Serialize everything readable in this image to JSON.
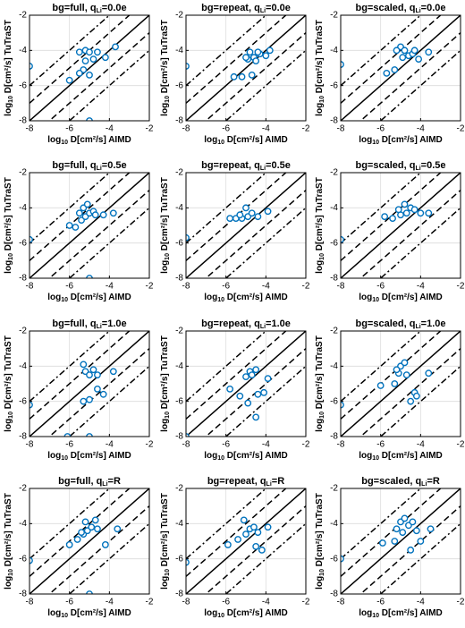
{
  "chart_data": [
    {
      "type": "scatter",
      "title": {
        "text": "bg=full,  q",
        "sub": "Li",
        "end": "=0.0e"
      },
      "xlabel": {
        "text": "log",
        "sub": "10",
        "end": "  D[cm²/s]  AIMD"
      },
      "ylabel": {
        "text": "log",
        "sub": "10",
        "end": "  D[cm²/s]  TuTraST"
      },
      "xlim": [
        -8,
        -2
      ],
      "ylim": [
        -8,
        -2
      ],
      "xticks": [
        -8,
        -6,
        -4,
        -2
      ],
      "yticks": [
        -8,
        -6,
        -4,
        -2
      ],
      "grid": true,
      "color": "#0072bd",
      "reference_lines": [
        {
          "offset": 0,
          "dash": "solid"
        },
        {
          "offset": 1,
          "dash": "dashed"
        },
        {
          "offset": -1,
          "dash": "dashed"
        },
        {
          "offset": 2,
          "dash": "dashdot"
        },
        {
          "offset": -2,
          "dash": "dashdot"
        }
      ],
      "x": [
        -8,
        -5,
        -5.5,
        -5.2,
        -5.0,
        -4.6,
        -3.7,
        -4.2,
        -5.2,
        -5.3,
        -5.5,
        -5.0,
        -6.0,
        -4.8
      ],
      "y": [
        -4.9,
        -8,
        -4.1,
        -4.0,
        -4.1,
        -4.1,
        -3.8,
        -4.4,
        -4.6,
        -5.1,
        -5.3,
        -5.4,
        -5.7,
        -4.5
      ]
    },
    {
      "type": "scatter",
      "title": {
        "text": "bg=repeat,  q",
        "sub": "Li",
        "end": "=0.0e"
      },
      "xlabel": {
        "text": "log",
        "sub": "10",
        "end": "  D[cm²/s]  AIMD"
      },
      "ylabel": {
        "text": "log",
        "sub": "10",
        "end": "  D[cm²/s]  TuTraST"
      },
      "xlim": [
        -8,
        -2
      ],
      "ylim": [
        -8,
        -2
      ],
      "xticks": [
        -8,
        -6,
        -4,
        -2
      ],
      "yticks": [
        -8,
        -6,
        -4,
        -2
      ],
      "grid": true,
      "color": "#0072bd",
      "reference_lines": [
        {
          "offset": 0,
          "dash": "solid"
        },
        {
          "offset": 1,
          "dash": "dashed"
        },
        {
          "offset": -1,
          "dash": "dashed"
        },
        {
          "offset": 2,
          "dash": "dashdot"
        },
        {
          "offset": -2,
          "dash": "dashdot"
        }
      ],
      "x": [
        -8,
        -5.6,
        -5.2,
        -4.8,
        -4.9,
        -4.6,
        -4.3,
        -4.0,
        -3.8,
        -4.7,
        -5.0,
        -4.5,
        -4.4
      ],
      "y": [
        -4.9,
        -5.5,
        -5.5,
        -4.1,
        -4.5,
        -4.4,
        -4.2,
        -4.3,
        -4.0,
        -5.4,
        -4.4,
        -4.6,
        -4.1
      ]
    },
    {
      "type": "scatter",
      "title": {
        "text": "bg=scaled,  q",
        "sub": "Li",
        "end": "=0.0e"
      },
      "xlabel": {
        "text": "log",
        "sub": "10",
        "end": "  D[cm²/s]  AIMD"
      },
      "ylabel": {
        "text": "log",
        "sub": "10",
        "end": "  D[cm²/s]  TuTraST"
      },
      "xlim": [
        -8,
        -2
      ],
      "ylim": [
        -8,
        -2
      ],
      "xticks": [
        -8,
        -6,
        -4,
        -2
      ],
      "yticks": [
        -8,
        -6,
        -4,
        -2
      ],
      "grid": true,
      "color": "#0072bd",
      "reference_lines": [
        {
          "offset": 0,
          "dash": "solid"
        },
        {
          "offset": 1,
          "dash": "dashed"
        },
        {
          "offset": -1,
          "dash": "dashed"
        },
        {
          "offset": 2,
          "dash": "dashdot"
        },
        {
          "offset": -2,
          "dash": "dashdot"
        }
      ],
      "x": [
        -8,
        -5.7,
        -5.3,
        -5.0,
        -4.8,
        -4.6,
        -4.4,
        -4.9,
        -5.2,
        -4.1,
        -4.3,
        -3.6
      ],
      "y": [
        -4.8,
        -5.3,
        -5.1,
        -3.8,
        -4.0,
        -4.3,
        -4.2,
        -4.4,
        -4.0,
        -4.5,
        -4.0,
        -4.1
      ]
    },
    {
      "type": "scatter",
      "title": {
        "text": "bg=full,  q",
        "sub": "Li",
        "end": "=0.5e"
      },
      "xlabel": {
        "text": "log",
        "sub": "10",
        "end": "  D[cm²/s]  AIMD"
      },
      "ylabel": {
        "text": "log",
        "sub": "10",
        "end": "  D[cm²/s]  TuTraST"
      },
      "xlim": [
        -8,
        -2
      ],
      "ylim": [
        -8,
        -2
      ],
      "xticks": [
        -8,
        -6,
        -4,
        -2
      ],
      "yticks": [
        -8,
        -6,
        -4,
        -2
      ],
      "grid": true,
      "color": "#0072bd",
      "reference_lines": [
        {
          "offset": 0,
          "dash": "solid"
        },
        {
          "offset": 1,
          "dash": "dashed"
        },
        {
          "offset": -1,
          "dash": "dashed"
        },
        {
          "offset": 2,
          "dash": "dashdot"
        },
        {
          "offset": -2,
          "dash": "dashdot"
        }
      ],
      "x": [
        -8,
        -5,
        -6,
        -5.7,
        -5.4,
        -5.2,
        -5.0,
        -4.8,
        -5.3,
        -5.1,
        -4.7,
        -4.3,
        -3.8,
        -5.5
      ],
      "y": [
        -5.8,
        -8,
        -5.0,
        -5.1,
        -4.7,
        -4.5,
        -4.3,
        -4.2,
        -4.0,
        -3.8,
        -4.4,
        -4.4,
        -4.3,
        -4.3
      ]
    },
    {
      "type": "scatter",
      "title": {
        "text": "bg=repeat,  q",
        "sub": "Li",
        "end": "=0.5e"
      },
      "xlabel": {
        "text": "log",
        "sub": "10",
        "end": "  D[cm²/s]  AIMD"
      },
      "ylabel": {
        "text": "log",
        "sub": "10",
        "end": "  D[cm²/s]  TuTraST"
      },
      "xlim": [
        -8,
        -2
      ],
      "ylim": [
        -8,
        -2
      ],
      "xticks": [
        -8,
        -6,
        -4,
        -2
      ],
      "yticks": [
        -8,
        -6,
        -4,
        -2
      ],
      "grid": true,
      "color": "#0072bd",
      "reference_lines": [
        {
          "offset": 0,
          "dash": "solid"
        },
        {
          "offset": 1,
          "dash": "dashed"
        },
        {
          "offset": -1,
          "dash": "dashed"
        },
        {
          "offset": 2,
          "dash": "dashdot"
        },
        {
          "offset": -2,
          "dash": "dashdot"
        }
      ],
      "x": [
        -8,
        -5.8,
        -5.5,
        -5.2,
        -4.9,
        -4.7,
        -5.0,
        -4.4,
        -3.9,
        -5.3
      ],
      "y": [
        -5.7,
        -4.6,
        -4.6,
        -4.6,
        -4.5,
        -4.3,
        -4.0,
        -4.5,
        -4.2,
        -4.4
      ]
    },
    {
      "type": "scatter",
      "title": {
        "text": "bg=scaled,  q",
        "sub": "Li",
        "end": "=0.5e"
      },
      "xlabel": {
        "text": "log",
        "sub": "10",
        "end": "  D[cm²/s]  AIMD"
      },
      "ylabel": {
        "text": "log",
        "sub": "10",
        "end": "  D[cm²/s]  TuTraST"
      },
      "xlim": [
        -8,
        -2
      ],
      "ylim": [
        -8,
        -2
      ],
      "xticks": [
        -8,
        -6,
        -4,
        -2
      ],
      "yticks": [
        -8,
        -6,
        -4,
        -2
      ],
      "grid": true,
      "color": "#0072bd",
      "reference_lines": [
        {
          "offset": 0,
          "dash": "solid"
        },
        {
          "offset": 1,
          "dash": "dashed"
        },
        {
          "offset": -1,
          "dash": "dashed"
        },
        {
          "offset": 2,
          "dash": "dashdot"
        },
        {
          "offset": -2,
          "dash": "dashdot"
        }
      ],
      "x": [
        -8,
        -5.8,
        -5.4,
        -5.0,
        -4.7,
        -4.5,
        -4.8,
        -4.3,
        -4.0,
        -3.6,
        -5.1
      ],
      "y": [
        -5.8,
        -4.5,
        -4.6,
        -4.4,
        -4.3,
        -4.0,
        -3.8,
        -4.1,
        -4.3,
        -4.3,
        -4.1
      ]
    },
    {
      "type": "scatter",
      "title": {
        "text": "bg=full,  q",
        "sub": "Li",
        "end": "=1.0e"
      },
      "xlabel": {
        "text": "log",
        "sub": "10",
        "end": "  D[cm²/s]  AIMD"
      },
      "ylabel": {
        "text": "log",
        "sub": "10",
        "end": "  D[cm²/s]  TuTraST"
      },
      "xlim": [
        -8,
        -2
      ],
      "ylim": [
        -8,
        -2
      ],
      "xticks": [
        -8,
        -6,
        -4,
        -2
      ],
      "yticks": [
        -8,
        -6,
        -4,
        -2
      ],
      "grid": true,
      "color": "#0072bd",
      "reference_lines": [
        {
          "offset": 0,
          "dash": "solid"
        },
        {
          "offset": 1,
          "dash": "dashed"
        },
        {
          "offset": -1,
          "dash": "dashed"
        },
        {
          "offset": 2,
          "dash": "dashdot"
        },
        {
          "offset": -2,
          "dash": "dashdot"
        }
      ],
      "x": [
        -8,
        -6.1,
        -5,
        -5.2,
        -5.0,
        -4.8,
        -5.3,
        -4.6,
        -3.8,
        -4.6,
        -4.3,
        -5.0,
        -5.3
      ],
      "y": [
        -6.2,
        -8,
        -8,
        -4.3,
        -4.5,
        -4.2,
        -3.9,
        -4.5,
        -4.3,
        -5.3,
        -5.6,
        -5.9,
        -6.0
      ]
    },
    {
      "type": "scatter",
      "title": {
        "text": "bg=repeat,  q",
        "sub": "Li",
        "end": "=1.0e"
      },
      "xlabel": {
        "text": "log",
        "sub": "10",
        "end": "  D[cm²/s]  AIMD"
      },
      "ylabel": {
        "text": "log",
        "sub": "10",
        "end": "  D[cm²/s]  TuTraST"
      },
      "xlim": [
        -8,
        -2
      ],
      "ylim": [
        -8,
        -2
      ],
      "xticks": [
        -8,
        -6,
        -4,
        -2
      ],
      "yticks": [
        -8,
        -6,
        -4,
        -2
      ],
      "grid": true,
      "color": "#0072bd",
      "reference_lines": [
        {
          "offset": 0,
          "dash": "solid"
        },
        {
          "offset": 1,
          "dash": "dashed"
        },
        {
          "offset": -1,
          "dash": "dashed"
        },
        {
          "offset": 2,
          "dash": "dashdot"
        },
        {
          "offset": -2,
          "dash": "dashdot"
        }
      ],
      "x": [
        -8,
        -5.8,
        -5.3,
        -5.0,
        -4.8,
        -4.5,
        -4.7,
        -4.4,
        -4.1,
        -3.9,
        -4.9,
        -4.5
      ],
      "y": [
        -8,
        -5.3,
        -5.7,
        -4.6,
        -4.3,
        -4.2,
        -4.5,
        -5.6,
        -5.5,
        -4.7,
        -6.1,
        -6.9
      ]
    },
    {
      "type": "scatter",
      "title": {
        "text": "bg=scaled,  q",
        "sub": "Li",
        "end": "=1.0e"
      },
      "xlabel": {
        "text": "log",
        "sub": "10",
        "end": "  D[cm²/s]  AIMD"
      },
      "ylabel": {
        "text": "log",
        "sub": "10",
        "end": "  D[cm²/s]  TuTraST"
      },
      "xlim": [
        -8,
        -2
      ],
      "ylim": [
        -8,
        -2
      ],
      "xticks": [
        -8,
        -6,
        -4,
        -2
      ],
      "yticks": [
        -8,
        -6,
        -4,
        -2
      ],
      "grid": true,
      "color": "#0072bd",
      "reference_lines": [
        {
          "offset": 0,
          "dash": "solid"
        },
        {
          "offset": 1,
          "dash": "dashed"
        },
        {
          "offset": -1,
          "dash": "dashed"
        },
        {
          "offset": 2,
          "dash": "dashdot"
        },
        {
          "offset": -2,
          "dash": "dashdot"
        }
      ],
      "x": [
        -8,
        -6.0,
        -5.3,
        -5.1,
        -5.0,
        -4.8,
        -5.2,
        -4.7,
        -4.3,
        -4.2,
        -3.6,
        -4.5
      ],
      "y": [
        -6.2,
        -5.1,
        -5.0,
        -4.4,
        -4.0,
        -3.8,
        -4.2,
        -4.5,
        -5.5,
        -5.7,
        -4.4,
        -6.0
      ]
    },
    {
      "type": "scatter",
      "title": {
        "text": "bg=full,  q",
        "sub": "Li",
        "end": "=R"
      },
      "xlabel": {
        "text": "log",
        "sub": "10",
        "end": "  D[cm²/s]  AIMD"
      },
      "ylabel": {
        "text": "log",
        "sub": "10",
        "end": "  D[cm²/s]  TuTraST"
      },
      "xlim": [
        -8,
        -2
      ],
      "ylim": [
        -8,
        -2
      ],
      "xticks": [
        -8,
        -6,
        -4,
        -2
      ],
      "yticks": [
        -8,
        -6,
        -4,
        -2
      ],
      "grid": true,
      "color": "#0072bd",
      "reference_lines": [
        {
          "offset": 0,
          "dash": "solid"
        },
        {
          "offset": 1,
          "dash": "dashed"
        },
        {
          "offset": -1,
          "dash": "dashed"
        },
        {
          "offset": 2,
          "dash": "dashdot"
        },
        {
          "offset": -2,
          "dash": "dashdot"
        }
      ],
      "x": [
        -8,
        -5,
        -6.0,
        -5.6,
        -5.3,
        -5.1,
        -4.9,
        -5.2,
        -4.7,
        -4.6,
        -4.2,
        -3.6,
        -5.4
      ],
      "y": [
        -6.1,
        -8,
        -5.2,
        -4.9,
        -4.6,
        -4.4,
        -4.2,
        -3.9,
        -3.8,
        -4.3,
        -5.2,
        -4.3,
        -4.5
      ]
    },
    {
      "type": "scatter",
      "title": {
        "text": "bg=repeat,  q",
        "sub": "Li",
        "end": "=R"
      },
      "xlabel": {
        "text": "log",
        "sub": "10",
        "end": "  D[cm²/s]  AIMD"
      },
      "ylabel": {
        "text": "log",
        "sub": "10",
        "end": "  D[cm²/s]  TuTraST"
      },
      "xlim": [
        -8,
        -2
      ],
      "ylim": [
        -8,
        -2
      ],
      "xticks": [
        -8,
        -6,
        -4,
        -2
      ],
      "yticks": [
        -8,
        -6,
        -4,
        -2
      ],
      "grid": true,
      "color": "#0072bd",
      "reference_lines": [
        {
          "offset": 0,
          "dash": "solid"
        },
        {
          "offset": 1,
          "dash": "dashed"
        },
        {
          "offset": -1,
          "dash": "dashed"
        },
        {
          "offset": 2,
          "dash": "dashdot"
        },
        {
          "offset": -2,
          "dash": "dashdot"
        }
      ],
      "x": [
        -8,
        -5.9,
        -5.4,
        -5.0,
        -4.8,
        -4.6,
        -5.1,
        -4.4,
        -4.5,
        -4.2,
        -3.9
      ],
      "y": [
        -6.2,
        -5.2,
        -4.9,
        -4.6,
        -4.3,
        -4.2,
        -3.8,
        -4.5,
        -5.3,
        -5.5,
        -4.2
      ]
    },
    {
      "type": "scatter",
      "title": {
        "text": "bg=scaled,  q",
        "sub": "Li",
        "end": "=R"
      },
      "xlabel": {
        "text": "log",
        "sub": "10",
        "end": "  D[cm²/s]  AIMD"
      },
      "ylabel": {
        "text": "log",
        "sub": "10",
        "end": "  D[cm²/s]  TuTraST"
      },
      "xlim": [
        -8,
        -2
      ],
      "ylim": [
        -8,
        -2
      ],
      "xticks": [
        -8,
        -6,
        -4,
        -2
      ],
      "yticks": [
        -8,
        -6,
        -4,
        -2
      ],
      "grid": true,
      "color": "#0072bd",
      "reference_lines": [
        {
          "offset": 0,
          "dash": "solid"
        },
        {
          "offset": 1,
          "dash": "dashed"
        },
        {
          "offset": -1,
          "dash": "dashed"
        },
        {
          "offset": 2,
          "dash": "dashdot"
        },
        {
          "offset": -2,
          "dash": "dashdot"
        }
      ],
      "x": [
        -8,
        -5.9,
        -5.3,
        -5.2,
        -5.0,
        -4.8,
        -4.6,
        -4.4,
        -4.9,
        -4.5,
        -4.0,
        -3.5,
        -4.2
      ],
      "y": [
        -6.0,
        -5.1,
        -5.0,
        -4.3,
        -3.9,
        -3.7,
        -4.1,
        -3.9,
        -4.5,
        -5.5,
        -5.0,
        -4.3,
        -4.4
      ]
    }
  ]
}
